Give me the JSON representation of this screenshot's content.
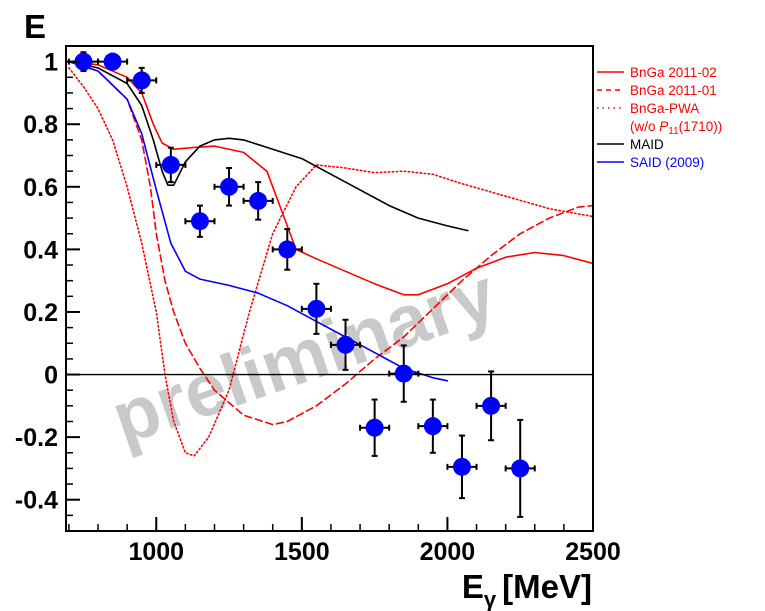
{
  "chart_data": {
    "type": "scatter",
    "title": "E",
    "xlabel": "E",
    "xlabel_sub": "γ",
    "xlabel_unit": "[MeV]",
    "ylabel": "",
    "xlim": [
      690,
      2500
    ],
    "ylim": [
      -0.5,
      1.05
    ],
    "x_ticks": [
      1000,
      1500,
      2000,
      2500
    ],
    "y_ticks": [
      1,
      0.8,
      0.6,
      0.4,
      0.2,
      0,
      -0.2,
      -0.4
    ],
    "y_tick_labels": [
      "1",
      "0.8",
      "0.6",
      "0.4",
      "0.2",
      "0",
      "-0.2",
      "-0.4"
    ],
    "grid": false,
    "zero_line": true,
    "watermark": "preliminary",
    "legend_position": "right",
    "data_points": [
      {
        "x": 750,
        "y": 1.0,
        "xerr": 50,
        "yerr": 0.03
      },
      {
        "x": 850,
        "y": 1.0,
        "xerr": 50,
        "yerr": 0.025
      },
      {
        "x": 950,
        "y": 0.94,
        "xerr": 50,
        "yerr": 0.04
      },
      {
        "x": 1050,
        "y": 0.67,
        "xerr": 50,
        "yerr": 0.055
      },
      {
        "x": 1150,
        "y": 0.49,
        "xerr": 50,
        "yerr": 0.05
      },
      {
        "x": 1250,
        "y": 0.6,
        "xerr": 50,
        "yerr": 0.06
      },
      {
        "x": 1350,
        "y": 0.555,
        "xerr": 50,
        "yerr": 0.06
      },
      {
        "x": 1450,
        "y": 0.4,
        "xerr": 50,
        "yerr": 0.065
      },
      {
        "x": 1550,
        "y": 0.21,
        "xerr": 50,
        "yerr": 0.08
      },
      {
        "x": 1650,
        "y": 0.095,
        "xerr": 50,
        "yerr": 0.08
      },
      {
        "x": 1750,
        "y": -0.17,
        "xerr": 50,
        "yerr": 0.09
      },
      {
        "x": 1850,
        "y": 0.003,
        "xerr": 50,
        "yerr": 0.09
      },
      {
        "x": 1950,
        "y": -0.165,
        "xerr": 50,
        "yerr": 0.085
      },
      {
        "x": 2050,
        "y": -0.295,
        "xerr": 50,
        "yerr": 0.1
      },
      {
        "x": 2150,
        "y": -0.1,
        "xerr": 50,
        "yerr": 0.11
      },
      {
        "x": 2250,
        "y": -0.3,
        "xerr": 50,
        "yerr": 0.155
      }
    ],
    "series": [
      {
        "name": "BnGa 2011-02",
        "color": "#ff0000",
        "style": "solid",
        "points": [
          [
            700,
            1.0
          ],
          [
            800,
            0.99
          ],
          [
            900,
            0.95
          ],
          [
            950,
            0.9
          ],
          [
            990,
            0.8
          ],
          [
            1020,
            0.74
          ],
          [
            1060,
            0.72
          ],
          [
            1120,
            0.725
          ],
          [
            1200,
            0.73
          ],
          [
            1300,
            0.71
          ],
          [
            1380,
            0.65
          ],
          [
            1440,
            0.5
          ],
          [
            1480,
            0.4
          ],
          [
            1550,
            0.37
          ],
          [
            1650,
            0.33
          ],
          [
            1750,
            0.29
          ],
          [
            1850,
            0.255
          ],
          [
            1900,
            0.255
          ],
          [
            2000,
            0.29
          ],
          [
            2100,
            0.34
          ],
          [
            2200,
            0.375
          ],
          [
            2300,
            0.39
          ],
          [
            2400,
            0.38
          ],
          [
            2500,
            0.355
          ]
        ]
      },
      {
        "name": "BnGa 2011-01",
        "color": "#ff0000",
        "style": "dashed",
        "points": [
          [
            700,
            1.0
          ],
          [
            800,
            0.97
          ],
          [
            900,
            0.88
          ],
          [
            950,
            0.75
          ],
          [
            980,
            0.6
          ],
          [
            1000,
            0.45
          ],
          [
            1030,
            0.3
          ],
          [
            1060,
            0.2
          ],
          [
            1100,
            0.1
          ],
          [
            1150,
            0.02
          ],
          [
            1200,
            -0.05
          ],
          [
            1300,
            -0.13
          ],
          [
            1400,
            -0.16
          ],
          [
            1450,
            -0.15
          ],
          [
            1550,
            -0.1
          ],
          [
            1650,
            -0.03
          ],
          [
            1750,
            0.05
          ],
          [
            1850,
            0.12
          ],
          [
            1950,
            0.21
          ],
          [
            2050,
            0.3
          ],
          [
            2150,
            0.38
          ],
          [
            2250,
            0.45
          ],
          [
            2350,
            0.5
          ],
          [
            2450,
            0.535
          ],
          [
            2500,
            0.54
          ]
        ]
      },
      {
        "name": "BnGa-PWA",
        "name_note": "(w/o P11(1710))",
        "color": "#ff0000",
        "style": "dotted",
        "points": [
          [
            700,
            0.98
          ],
          [
            750,
            0.92
          ],
          [
            800,
            0.85
          ],
          [
            850,
            0.75
          ],
          [
            900,
            0.6
          ],
          [
            950,
            0.42
          ],
          [
            1000,
            0.2
          ],
          [
            1030,
            0.0
          ],
          [
            1060,
            -0.15
          ],
          [
            1100,
            -0.25
          ],
          [
            1130,
            -0.26
          ],
          [
            1180,
            -0.2
          ],
          [
            1250,
            -0.05
          ],
          [
            1320,
            0.2
          ],
          [
            1400,
            0.45
          ],
          [
            1480,
            0.6
          ],
          [
            1550,
            0.67
          ],
          [
            1650,
            0.66
          ],
          [
            1750,
            0.645
          ],
          [
            1850,
            0.65
          ],
          [
            1950,
            0.64
          ],
          [
            2050,
            0.61
          ],
          [
            2200,
            0.57
          ],
          [
            2350,
            0.53
          ],
          [
            2500,
            0.505
          ]
        ]
      },
      {
        "name": "MAID",
        "color": "#000000",
        "style": "solid",
        "points": [
          [
            700,
            1.0
          ],
          [
            800,
            0.98
          ],
          [
            900,
            0.93
          ],
          [
            950,
            0.86
          ],
          [
            990,
            0.75
          ],
          [
            1020,
            0.65
          ],
          [
            1040,
            0.605
          ],
          [
            1060,
            0.605
          ],
          [
            1100,
            0.68
          ],
          [
            1150,
            0.73
          ],
          [
            1200,
            0.75
          ],
          [
            1250,
            0.755
          ],
          [
            1300,
            0.75
          ],
          [
            1400,
            0.72
          ],
          [
            1500,
            0.69
          ],
          [
            1600,
            0.64
          ],
          [
            1700,
            0.59
          ],
          [
            1800,
            0.54
          ],
          [
            1900,
            0.5
          ],
          [
            2000,
            0.475
          ],
          [
            2070,
            0.46
          ]
        ]
      },
      {
        "name": "SAID (2009)",
        "color": "#0000ff",
        "style": "solid",
        "points": [
          [
            700,
            1.0
          ],
          [
            800,
            0.97
          ],
          [
            900,
            0.88
          ],
          [
            950,
            0.77
          ],
          [
            1000,
            0.59
          ],
          [
            1050,
            0.42
          ],
          [
            1100,
            0.33
          ],
          [
            1150,
            0.305
          ],
          [
            1250,
            0.285
          ],
          [
            1350,
            0.26
          ],
          [
            1450,
            0.22
          ],
          [
            1550,
            0.17
          ],
          [
            1650,
            0.12
          ],
          [
            1750,
            0.07
          ],
          [
            1850,
            0.02
          ],
          [
            1950,
            -0.01
          ],
          [
            2000,
            -0.02
          ]
        ]
      }
    ]
  }
}
